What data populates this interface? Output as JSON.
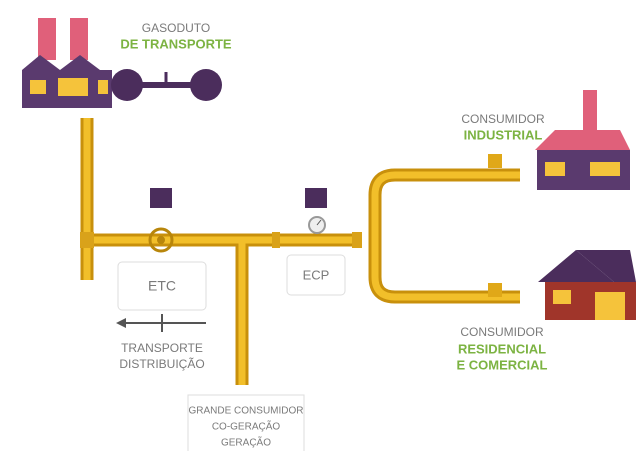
{
  "labels": {
    "gasoduto": {
      "line1": "GASODUTO",
      "line2": "DE TRANSPORTE"
    },
    "industrial": {
      "line1": "CONSUMIDOR",
      "line2": "INDUSTRIAL"
    },
    "residencial": {
      "line1": "CONSUMIDOR",
      "line2": "RESIDENCIAL",
      "line3": "E COMERCIAL"
    },
    "etc": "ETC",
    "ecp": "ECP",
    "flow": {
      "line1": "TRANSPORTE",
      "line2": "DISTRIBUIÇÃO"
    },
    "grande": {
      "line1": "GRANDE CONSUMIDOR",
      "line2": "CO-GERAÇÃO",
      "line3": "GERAÇÃO"
    }
  }
}
